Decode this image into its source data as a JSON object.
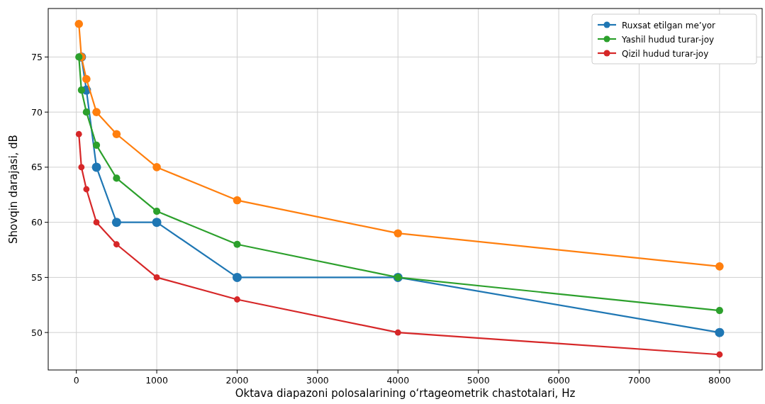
{
  "chart_data": {
    "type": "line",
    "xlabel": "Oktava diapazoni polosalarining o‘rtageometrik chastotalari, Hz",
    "ylabel": "Shovqin darajasi, dB",
    "x": [
      31.5,
      63,
      125,
      250,
      500,
      1000,
      2000,
      4000,
      8000
    ],
    "series": [
      {
        "name": "Ruxsat etilgan me’yor",
        "color": "#1f77b4",
        "x": [
          63,
          125,
          250,
          500,
          1000,
          2000,
          4000,
          8000
        ],
        "values": [
          75,
          72,
          65,
          60,
          60,
          55,
          55,
          50
        ]
      },
      {
        "color": "#ff7f0e",
        "values": [
          78,
          75,
          73,
          70,
          68,
          65,
          62,
          59,
          56
        ]
      },
      {
        "name": "Yashil hudud turar-joy",
        "color": "#2ca02c",
        "values": [
          75,
          72,
          70,
          67,
          64,
          61,
          58,
          55,
          52
        ]
      },
      {
        "name": "Qizil hudud turar-joy",
        "color": "#d62728",
        "values": [
          68,
          65,
          63,
          60,
          58,
          55,
          53,
          50,
          48
        ]
      }
    ],
    "xlim": [
      -350,
      8530
    ],
    "xticks": [
      0,
      1000,
      2000,
      3000,
      4000,
      5000,
      6000,
      7000,
      8000
    ],
    "ylim": [
      46.6,
      79.4
    ],
    "yticks": [
      50,
      55,
      60,
      65,
      70,
      75
    ],
    "grid": true,
    "legend": "top right",
    "marker": "circle"
  }
}
